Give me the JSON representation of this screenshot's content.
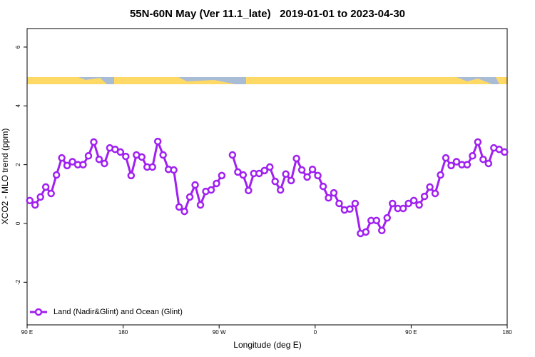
{
  "chart_data": {
    "type": "line",
    "title": "55N-60N May (Ver 11.1_late)   2019-01-01 to 2023-04-30",
    "x_label": "Longitude (deg E)",
    "y_label": "XCO2 - MLO trend (ppm)",
    "xlim": [
      90,
      540
    ],
    "ylim": [
      -3.45,
      6.63
    ],
    "xticks": [
      {
        "value": 90,
        "label": "90 E"
      },
      180,
      {
        "value": 270,
        "label": "90 W"
      },
      {
        "value": 360,
        "label": "0"
      },
      {
        "value": 450,
        "label": "90 E"
      },
      {
        "value": 540,
        "label": "180"
      }
    ],
    "yticks": [
      6,
      4,
      2,
      0,
      -2
    ],
    "legend": "bottom-left",
    "x": [
      92.5,
      97.5,
      102.5,
      107.5,
      112.5,
      117.5,
      122.5,
      127.5,
      132.5,
      137.5,
      142.5,
      147.5,
      152.5,
      157.5,
      162.5,
      167.5,
      172.5,
      177.5,
      182.5,
      187.5,
      192.5,
      197.5,
      202.5,
      207.5,
      212.5,
      217.5,
      222.5,
      227.5,
      232.5,
      237.5,
      242.5,
      247.5,
      252.5,
      257.5,
      262.5,
      267.5,
      272.5,
      277.5,
      282.5,
      287.5,
      292.5,
      297.5,
      302.5,
      307.5,
      312.5,
      317.5,
      322.5,
      327.5,
      332.5,
      337.5,
      342.5,
      347.5,
      352.5,
      357.5,
      362.5,
      367.5,
      372.5,
      377.5,
      382.5,
      387.5,
      392.5,
      397.5,
      402.5,
      407.5,
      412.5,
      417.5,
      422.5,
      427.5,
      432.5,
      437.5,
      442.5,
      447.5,
      452.5,
      457.5,
      462.5,
      467.5,
      472.5,
      477.5,
      482.5,
      487.5,
      492.5,
      497.5,
      502.5,
      507.5,
      512.5,
      517.5,
      522.5,
      527.5,
      532.5,
      537.5
    ],
    "series": [
      {
        "name": "Land (Nadir&Glint) and Ocean (Glint)",
        "color": "#a020f0",
        "values": [
          0.78,
          0.63,
          0.9,
          1.24,
          1.02,
          1.65,
          2.23,
          1.97,
          2.1,
          2.0,
          2.0,
          2.3,
          2.77,
          2.18,
          2.04,
          2.57,
          2.52,
          2.43,
          2.28,
          1.63,
          2.33,
          2.26,
          1.92,
          1.92,
          2.79,
          2.33,
          1.84,
          1.82,
          0.56,
          0.41,
          0.9,
          1.31,
          0.63,
          1.09,
          1.14,
          1.36,
          1.63,
          null,
          2.33,
          1.75,
          1.65,
          1.12,
          1.7,
          1.7,
          1.8,
          1.92,
          1.43,
          1.14,
          1.68,
          1.46,
          2.21,
          1.82,
          1.58,
          1.84,
          1.63,
          1.26,
          0.87,
          1.04,
          0.68,
          0.46,
          0.49,
          0.68,
          -0.34,
          -0.29,
          0.1,
          0.1,
          -0.24,
          0.19,
          0.68,
          0.51,
          0.51,
          0.68,
          0.78,
          0.63,
          0.92,
          1.24,
          1.02,
          1.65,
          2.23,
          1.97,
          2.1,
          2.0,
          2.0,
          2.3,
          2.77,
          2.18,
          2.04,
          2.57,
          2.52,
          2.43
        ]
      }
    ]
  }
}
